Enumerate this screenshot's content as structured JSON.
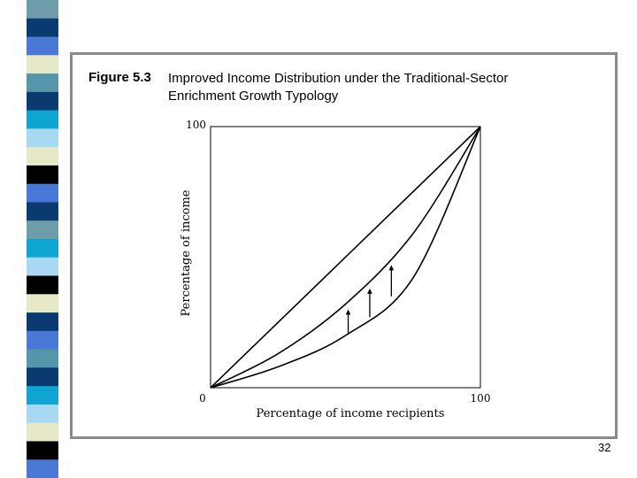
{
  "slide": {
    "figure_label": "Figure 5.3",
    "title_lines": [
      "Improved Income Distribution under the Traditional-Sector",
      "Enrichment Growth Typology"
    ],
    "page_number": "32"
  },
  "colors": {
    "stripe": [
      "#6f9cab",
      "#0a3a70",
      "#4a78d6",
      "#e6e8c8",
      "#5596ab",
      "#0a3a70",
      "#0ea5d3",
      "#a9d8f2",
      "#e6e8c8",
      "#000000",
      "#4a78d6",
      "#0a3a70",
      "#6f9cab",
      "#0ea5d3",
      "#a9d8f2",
      "#000000",
      "#e6e8c8",
      "#0a3a70",
      "#4a78d6",
      "#5596ab",
      "#0a3a70",
      "#0ea5d3",
      "#a9d8f2",
      "#e6e8c8",
      "#000000",
      "#4a78d6"
    ],
    "panel_border": "#8a8a8a"
  },
  "chart_data": {
    "type": "line",
    "xlabel": "Percentage of income recipients",
    "ylabel": "Percentage of income",
    "xlim": [
      0,
      100
    ],
    "ylim": [
      0,
      100
    ],
    "x_tick_labels": [
      "0",
      "100"
    ],
    "y_tick_labels": [
      "100"
    ],
    "series": [
      {
        "x": [
          0,
          25,
          50,
          75,
          100
        ],
        "y": [
          0,
          25,
          50,
          75,
          100
        ]
      },
      {
        "x": [
          0,
          25,
          50,
          75,
          100
        ],
        "y": [
          0,
          13,
          32,
          59,
          100
        ]
      },
      {
        "x": [
          0,
          25,
          50,
          75,
          100
        ],
        "y": [
          0,
          8,
          20,
          42,
          100
        ]
      }
    ],
    "arrows": [
      {
        "x": 51,
        "y_from": 21,
        "y_to": 30
      },
      {
        "x": 59,
        "y_from": 27,
        "y_to": 38
      },
      {
        "x": 67,
        "y_from": 35,
        "y_to": 47
      }
    ]
  }
}
